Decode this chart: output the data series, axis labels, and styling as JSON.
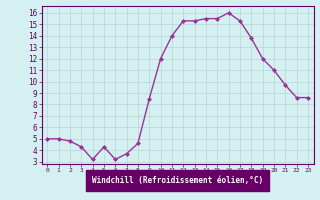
{
  "x": [
    0,
    1,
    2,
    3,
    4,
    5,
    6,
    7,
    8,
    9,
    10,
    11,
    12,
    13,
    14,
    15,
    16,
    17,
    18,
    19,
    20,
    21,
    22,
    23
  ],
  "y": [
    5.0,
    5.0,
    4.8,
    4.3,
    3.2,
    4.3,
    3.2,
    3.7,
    4.6,
    8.5,
    12.0,
    14.0,
    15.3,
    15.3,
    15.5,
    15.5,
    16.0,
    15.3,
    13.8,
    12.0,
    11.0,
    9.7,
    8.6,
    8.6
  ],
  "line_color": "#993399",
  "marker": "D",
  "marker_size": 2,
  "bg_color": "#d5f0f0",
  "grid_color": "#b8d4d4",
  "xlabel": "Windchill (Refroidissement éolien,°C)",
  "xlabel_bg": "#660066",
  "xlabel_fg": "#ffffff",
  "ylabel_ticks": [
    3,
    4,
    5,
    6,
    7,
    8,
    9,
    10,
    11,
    12,
    13,
    14,
    15,
    16
  ],
  "xticks": [
    0,
    1,
    2,
    3,
    4,
    5,
    6,
    7,
    8,
    9,
    10,
    11,
    12,
    13,
    14,
    15,
    16,
    17,
    18,
    19,
    20,
    21,
    22,
    23
  ],
  "ylim": [
    2.8,
    16.6
  ],
  "xlim": [
    -0.5,
    23.5
  ],
  "tick_color": "#660066",
  "tick_label_color": "#660066",
  "spine_color": "#660066",
  "linewidth": 1.0,
  "xtick_fontsize": 4.5,
  "ytick_fontsize": 5.5
}
